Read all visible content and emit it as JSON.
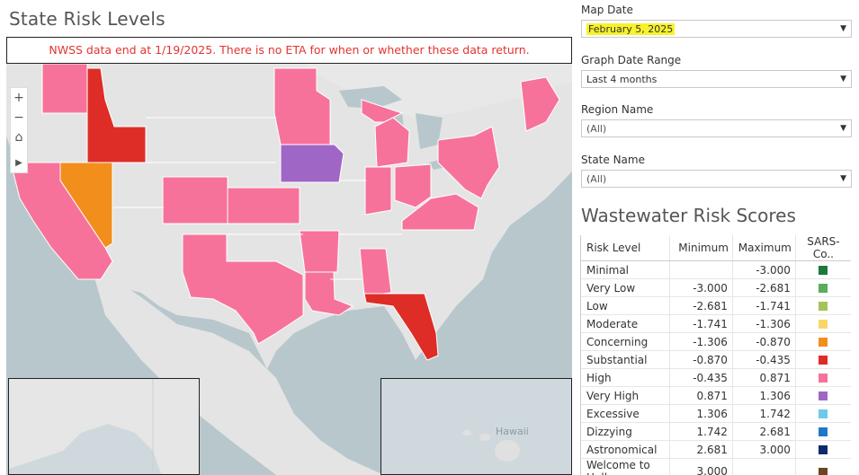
{
  "page": {
    "title": "State Risk Levels",
    "notice": "NWSS data end at 1/19/2025. There is no ETA for when or whether these data return."
  },
  "map": {
    "tools": {
      "zoom_in": "+",
      "zoom_out": "−",
      "home": "⌂",
      "expand": "▶"
    },
    "hawaii_label": "Hawaii",
    "states": [
      {
        "name": "Washington",
        "level": "High",
        "color": "#f7729a"
      },
      {
        "name": "Idaho",
        "level": "Substantial",
        "color": "#de2d26"
      },
      {
        "name": "Nevada",
        "level": "Concerning",
        "color": "#f28e1c"
      },
      {
        "name": "California",
        "level": "High",
        "color": "#f7729a"
      },
      {
        "name": "Colorado",
        "level": "High",
        "color": "#f7729a"
      },
      {
        "name": "Kansas",
        "level": "High",
        "color": "#f7729a"
      },
      {
        "name": "Texas",
        "level": "High",
        "color": "#f7729a"
      },
      {
        "name": "Minnesota",
        "level": "High",
        "color": "#f7729a"
      },
      {
        "name": "Iowa",
        "level": "Very High",
        "color": "#a066c6"
      },
      {
        "name": "Arkansas",
        "level": "High",
        "color": "#f7729a"
      },
      {
        "name": "Louisiana",
        "level": "High",
        "color": "#f7729a"
      },
      {
        "name": "Alabama",
        "level": "High",
        "color": "#f7729a"
      },
      {
        "name": "Florida",
        "level": "Substantial",
        "color": "#de2d26"
      },
      {
        "name": "Michigan",
        "level": "High",
        "color": "#f7729a"
      },
      {
        "name": "Indiana",
        "level": "High",
        "color": "#f7729a"
      },
      {
        "name": "Ohio",
        "level": "High",
        "color": "#f7729a"
      },
      {
        "name": "Virginia",
        "level": "High",
        "color": "#f7729a"
      },
      {
        "name": "New York",
        "level": "High",
        "color": "#f7729a"
      },
      {
        "name": "Maine",
        "level": "High",
        "color": "#f7729a"
      }
    ]
  },
  "filters": {
    "map_date": {
      "label": "Map Date",
      "value": "February 5, 2025"
    },
    "graph_range": {
      "label": "Graph Date Range",
      "value": "Last 4 months"
    },
    "region": {
      "label": "Region Name",
      "value": "(All)"
    },
    "state": {
      "label": "State Name",
      "value": "(All)"
    }
  },
  "scores": {
    "title": "Wastewater Risk Scores",
    "headers": [
      "Risk Level",
      "Minimum",
      "Maximum",
      "SARS-Co.."
    ],
    "rows": [
      {
        "level": "Minimal",
        "min": "",
        "max": "-3.000",
        "color": "#1a7a3a"
      },
      {
        "level": "Very Low",
        "min": "-3.000",
        "max": "-2.681",
        "color": "#5aad5a"
      },
      {
        "level": "Low",
        "min": "-2.681",
        "max": "-1.741",
        "color": "#a6c25a"
      },
      {
        "level": "Moderate",
        "min": "-1.741",
        "max": "-1.306",
        "color": "#f9d66a"
      },
      {
        "level": "Concerning",
        "min": "-1.306",
        "max": "-0.870",
        "color": "#f28e1c"
      },
      {
        "level": "Substantial",
        "min": "-0.870",
        "max": "-0.435",
        "color": "#de2d26"
      },
      {
        "level": "High",
        "min": "-0.435",
        "max": "0.871",
        "color": "#f7729a"
      },
      {
        "level": "Very High",
        "min": "0.871",
        "max": "1.306",
        "color": "#a066c6"
      },
      {
        "level": "Excessive",
        "min": "1.306",
        "max": "1.742",
        "color": "#6ccbe8"
      },
      {
        "level": "Dizzying",
        "min": "1.742",
        "max": "2.681",
        "color": "#1f78c8"
      },
      {
        "level": "Astronomical",
        "min": "2.681",
        "max": "3.000",
        "color": "#0d2a6b"
      },
      {
        "level": "Welcome to Hell",
        "min": "3.000",
        "max": "",
        "color": "#6b4423"
      }
    ]
  }
}
